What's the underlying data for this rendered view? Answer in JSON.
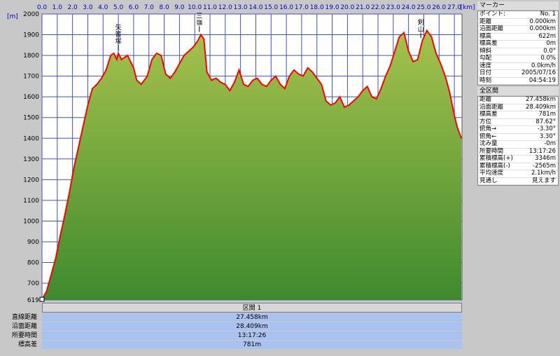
{
  "chart_data": {
    "type": "area",
    "title": "",
    "xlabel": "km",
    "ylabel": "m",
    "xlim": [
      0,
      27.5
    ],
    "ylim": [
      619,
      2000
    ],
    "x_ticks": [
      "0.0",
      "1.0",
      "2.0",
      "3.0",
      "4.0",
      "5.0",
      "6.0",
      "7.0",
      "8.0",
      "9.0",
      "10.0",
      "11.0",
      "12.0",
      "13.0",
      "14.0",
      "15.0",
      "16.0",
      "17.0",
      "18.0",
      "19.0",
      "20.0",
      "21.0",
      "22.0",
      "23.0",
      "24.0",
      "25.0",
      "26.0",
      "27.0"
    ],
    "x_unit_label": "[km]",
    "y_unit_label": "[m]",
    "y_ticks": [
      619,
      700,
      800,
      900,
      1000,
      1100,
      1200,
      1300,
      1400,
      1500,
      1600,
      1700,
      1800,
      1900,
      2000
    ],
    "grid": true,
    "colors": {
      "line": "#ff0000",
      "fill_top": "#a6c24c",
      "fill_bottom": "#3f8a2e",
      "grid": "#3b53c9",
      "background": "#ffffff"
    },
    "x": [
      0,
      0.3,
      0.6,
      0.9,
      1.2,
      1.5,
      1.8,
      2.1,
      2.4,
      2.7,
      3.0,
      3.3,
      3.6,
      3.9,
      4.2,
      4.5,
      4.7,
      4.9,
      5.0,
      5.2,
      5.4,
      5.6,
      5.8,
      6.0,
      6.2,
      6.5,
      6.9,
      7.2,
      7.5,
      7.8,
      8.1,
      8.4,
      8.7,
      9.0,
      9.3,
      9.6,
      9.9,
      10.2,
      10.4,
      10.6,
      10.8,
      11.1,
      11.4,
      11.7,
      12.0,
      12.3,
      12.6,
      12.9,
      13.2,
      13.5,
      13.8,
      14.1,
      14.4,
      14.7,
      15.0,
      15.3,
      15.6,
      15.9,
      16.2,
      16.5,
      16.8,
      17.1,
      17.4,
      17.7,
      18.0,
      18.3,
      18.6,
      18.9,
      19.2,
      19.5,
      19.8,
      20.1,
      20.4,
      20.7,
      21.0,
      21.3,
      21.6,
      21.9,
      22.2,
      22.5,
      22.8,
      23.1,
      23.4,
      23.7,
      24.0,
      24.3,
      24.6,
      24.9,
      25.2,
      25.5,
      25.8,
      26.1,
      26.4,
      26.7,
      27.0,
      27.2,
      27.46
    ],
    "values": [
      622,
      660,
      740,
      820,
      930,
      1030,
      1140,
      1260,
      1360,
      1460,
      1560,
      1640,
      1660,
      1690,
      1730,
      1800,
      1810,
      1780,
      1810,
      1780,
      1790,
      1800,
      1770,
      1740,
      1680,
      1660,
      1700,
      1780,
      1810,
      1800,
      1710,
      1690,
      1720,
      1760,
      1800,
      1820,
      1840,
      1870,
      1900,
      1880,
      1720,
      1680,
      1690,
      1670,
      1660,
      1630,
      1670,
      1730,
      1660,
      1650,
      1680,
      1690,
      1660,
      1650,
      1680,
      1700,
      1660,
      1640,
      1700,
      1730,
      1710,
      1700,
      1740,
      1720,
      1690,
      1660,
      1580,
      1560,
      1570,
      1600,
      1550,
      1560,
      1580,
      1600,
      1630,
      1650,
      1600,
      1590,
      1640,
      1700,
      1750,
      1820,
      1890,
      1910,
      1820,
      1770,
      1780,
      1870,
      1920,
      1890,
      1810,
      1760,
      1700,
      1620,
      1510,
      1450,
      1400
    ],
    "annotations": [
      {
        "text": "矢筈塚",
        "x": 5.0
      },
      {
        "text": "三嶺",
        "x": 10.3
      },
      {
        "text": "剣山",
        "x": 24.8
      }
    ]
  },
  "summary": {
    "header": "区間 1",
    "rows": [
      {
        "label": "直線距離",
        "value": "27.458km"
      },
      {
        "label": "沿面距離",
        "value": "28.409km"
      },
      {
        "label": "所要時間",
        "value": "13:17:26"
      },
      {
        "label": "標高差",
        "value": "781m"
      }
    ]
  },
  "marker_panel": {
    "title": "マーカー",
    "rows": [
      {
        "label": "ポイント:",
        "value": "No. 1"
      },
      {
        "label": "距離",
        "value": "0.000km"
      },
      {
        "label": "沿面距離",
        "value": "0.000km"
      },
      {
        "label": "標高",
        "value": "622m"
      },
      {
        "label": "標高差",
        "value": "0m"
      },
      {
        "label": "傾斜",
        "value": "0.0°"
      },
      {
        "label": "勾配",
        "value": "0.0%"
      },
      {
        "label": "速度",
        "value": "0.0km/h"
      },
      {
        "label": "日付",
        "value": "2005/07/16"
      },
      {
        "label": "時刻",
        "value": "04:54:19"
      }
    ]
  },
  "section_panel": {
    "title": "全区間",
    "rows": [
      {
        "label": "距離",
        "value": "27.458km"
      },
      {
        "label": "沿面距離",
        "value": "28.409km"
      },
      {
        "label": "標高差",
        "value": "781m"
      },
      {
        "label": "方位",
        "value": "87.62°"
      },
      {
        "label": "俯角→",
        "value": "-3.30°"
      },
      {
        "label": "俯角←",
        "value": "3.30°"
      },
      {
        "label": "沈み量",
        "value": "-0m"
      },
      {
        "label": "所要時間",
        "value": "13:17:26"
      },
      {
        "label": "累積標高(+)",
        "value": "3346m"
      },
      {
        "label": "累積標高(-)",
        "value": "-2565m"
      },
      {
        "label": "平均速度",
        "value": "2.1km/h"
      },
      {
        "label": "見通し",
        "value": "見えます"
      }
    ]
  }
}
